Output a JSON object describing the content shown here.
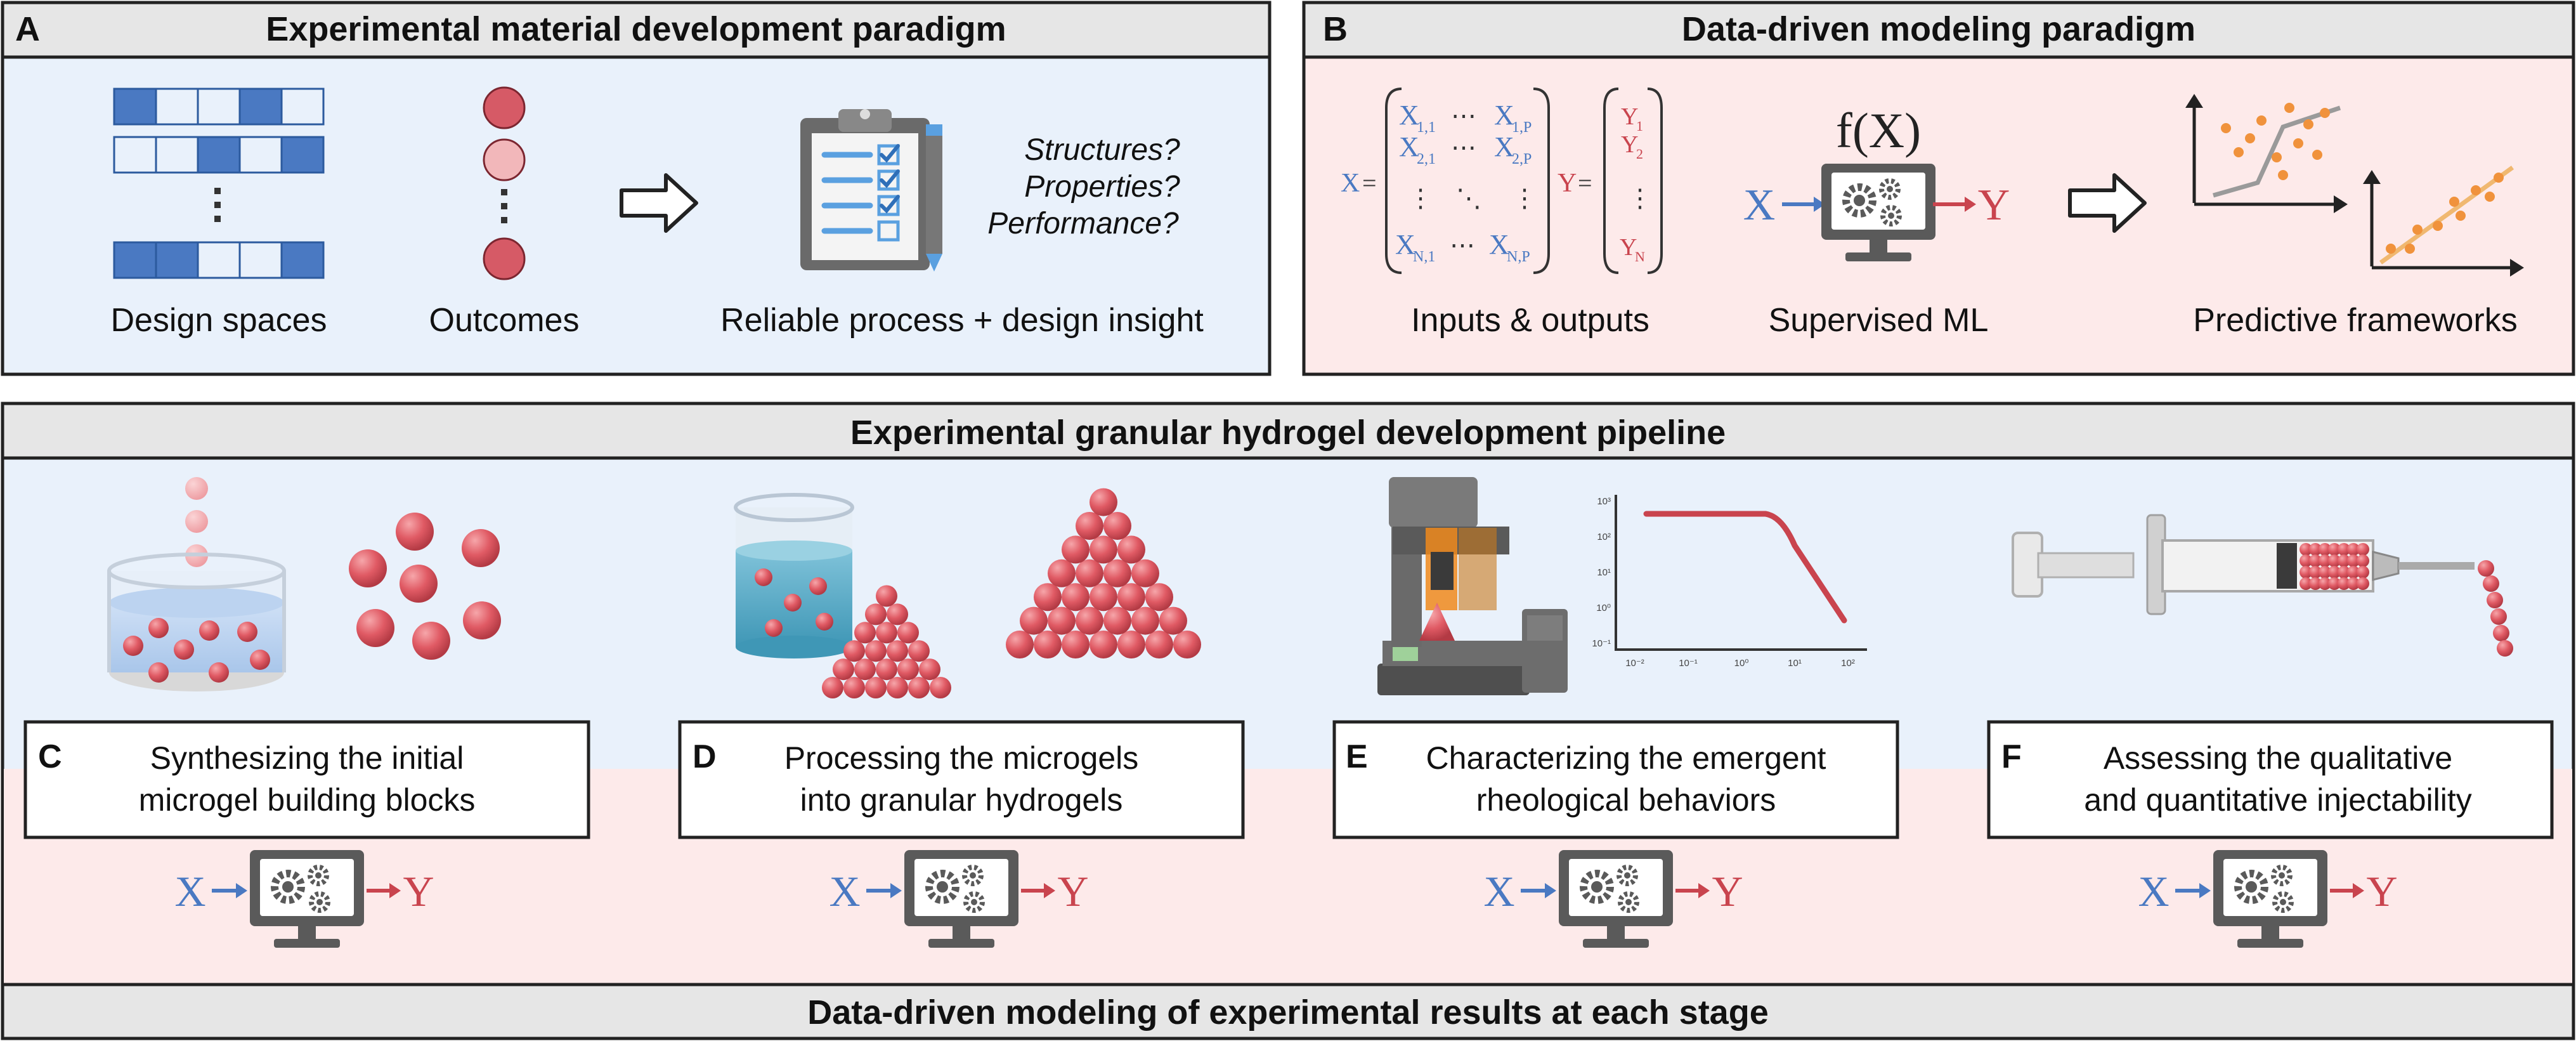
{
  "panel_a": {
    "letter": "A",
    "title": "Experimental material development paradigm",
    "captions": [
      "Design spaces",
      "Outcomes",
      "Reliable process + design insight"
    ],
    "questions": [
      "Structures?",
      "Properties?",
      "Performance?"
    ]
  },
  "panel_b": {
    "letter": "B",
    "title": "Data-driven modeling paradigm",
    "captions": [
      "Inputs & outputs",
      "Supervised ML",
      "Predictive frameworks"
    ],
    "x_label": "X",
    "y_label": "Y",
    "equals": "=",
    "fx": "f(X)",
    "matrix": {
      "r1a": "X",
      "r1a_sub": "1,1",
      "r1b": "X",
      "r1b_sub": "1,P",
      "r2a": "X",
      "r2a_sub": "2,1",
      "r2b": "X",
      "r2b_sub": "2,P",
      "r4a": "X",
      "r4a_sub": "N,1",
      "r4b": "X",
      "r4b_sub": "N,P",
      "hdots": "⋯",
      "vdots": "⋮",
      "ddots": "⋱"
    },
    "vector": {
      "y1": "Y",
      "y1_sub": "1",
      "y2": "Y",
      "y2_sub": "2",
      "yn": "Y",
      "yn_sub": "N"
    }
  },
  "pipeline": {
    "title": "Experimental granular hydrogel development pipeline",
    "footer": "Data-driven modeling of experimental results at each stage",
    "stages": [
      {
        "letter": "C",
        "line1": "Synthesizing the initial",
        "line2": "microgel building blocks"
      },
      {
        "letter": "D",
        "line1": "Processing the microgels",
        "line2": "into granular hydrogels"
      },
      {
        "letter": "E",
        "line1": "Characterizing the emergent",
        "line2": "rheological behaviors"
      },
      {
        "letter": "F",
        "line1": "Assessing the qualitative",
        "line2": "and quantitative injectability"
      }
    ],
    "ml_x": "X",
    "ml_y": "Y"
  },
  "rheo_chart": {
    "y_ticks": [
      "10³",
      "10²",
      "10¹",
      "10⁰",
      "10⁻¹"
    ],
    "x_ticks": [
      "10⁻²",
      "10⁻¹",
      "10⁰",
      "10¹",
      "10²"
    ]
  },
  "colors": {
    "blue_bg": "#e9f1fb",
    "pink_bg": "#fdeaea",
    "header_bg": "#e6e6e6",
    "blue": "#4a79c2",
    "red": "#c9444e",
    "gray": "#555555"
  }
}
